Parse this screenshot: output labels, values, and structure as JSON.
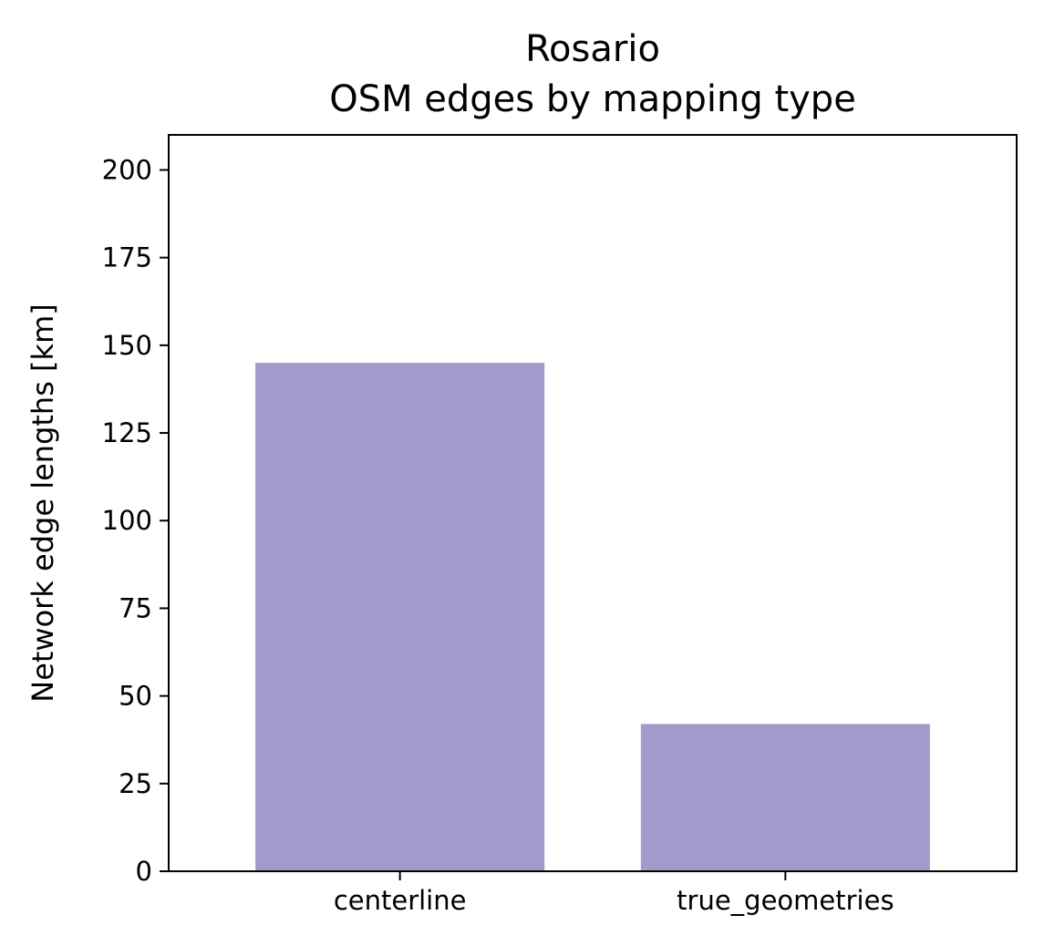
{
  "chart_data": {
    "type": "bar",
    "title": "Rosario\nOSM edges by mapping type",
    "title_lines": [
      "Rosario",
      "OSM edges by mapping type"
    ],
    "xlabel": "",
    "ylabel": "Network edge lengths [km]",
    "categories": [
      "centerline",
      "true_geometries"
    ],
    "values": [
      145,
      42
    ],
    "ylim": [
      0,
      210
    ],
    "yticks": [
      0,
      25,
      50,
      75,
      100,
      125,
      150,
      175,
      200
    ],
    "grid": false,
    "bar_color": "#a29aca"
  }
}
